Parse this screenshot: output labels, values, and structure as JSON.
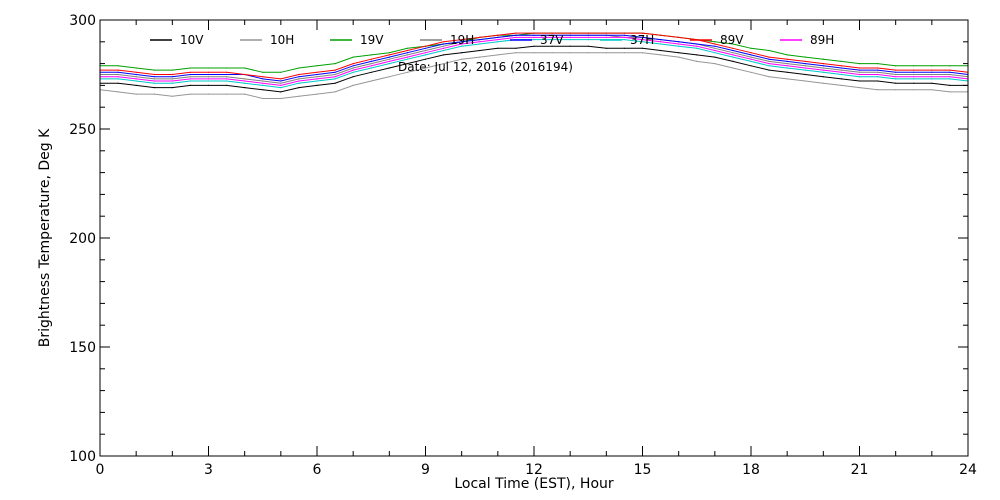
{
  "chart_data": {
    "type": "line",
    "title": "",
    "annotation": "Date: Jul 12, 2016 (2016194)",
    "xlabel": "Local Time (EST), Hour",
    "ylabel": "Brightness Temperature, Deg K",
    "xlim": [
      0,
      24
    ],
    "ylim": [
      100,
      300
    ],
    "xticks": [
      0,
      3,
      6,
      9,
      12,
      15,
      18,
      21,
      24
    ],
    "yticks": [
      100,
      150,
      200,
      250,
      300
    ],
    "x_minor_step": 1,
    "y_minor_step": 10,
    "grid": false,
    "legend_placement": "top, inside plot",
    "x": [
      0,
      0.5,
      1,
      1.5,
      2,
      2.5,
      3,
      3.5,
      4,
      4.5,
      5,
      5.5,
      6,
      6.5,
      7,
      7.5,
      8,
      8.5,
      9,
      9.5,
      10,
      10.5,
      11,
      11.5,
      12,
      12.5,
      13,
      13.5,
      14,
      14.5,
      15,
      15.5,
      16,
      16.5,
      17,
      17.5,
      18,
      18.5,
      19,
      19.5,
      20,
      20.5,
      21,
      21.5,
      22,
      22.5,
      23,
      23.5,
      24
    ],
    "series": [
      {
        "name": "10V",
        "color": "#000000",
        "values": [
          271,
          271,
          270,
          269,
          269,
          270,
          270,
          270,
          269,
          268,
          267,
          269,
          270,
          271,
          274,
          276,
          278,
          280,
          282,
          284,
          285,
          286,
          287,
          287,
          288,
          288,
          288,
          288,
          287,
          287,
          287,
          286,
          285,
          284,
          283,
          281,
          279,
          277,
          276,
          275,
          274,
          273,
          272,
          272,
          271,
          271,
          271,
          270,
          270
        ]
      },
      {
        "name": "10H",
        "color": "#969696",
        "values": [
          268,
          267,
          266,
          266,
          265,
          266,
          266,
          266,
          266,
          264,
          264,
          265,
          266,
          267,
          270,
          272,
          274,
          276,
          278,
          280,
          282,
          283,
          284,
          285,
          285,
          285,
          285,
          285,
          285,
          285,
          285,
          284,
          283,
          281,
          280,
          278,
          276,
          274,
          273,
          272,
          271,
          270,
          269,
          268,
          268,
          268,
          268,
          267,
          267
        ]
      },
      {
        "name": "19V",
        "color": "#00a000",
        "values": [
          279,
          279,
          278,
          277,
          277,
          278,
          278,
          278,
          278,
          276,
          276,
          278,
          279,
          280,
          283,
          284,
          285,
          287,
          288,
          289,
          290,
          292,
          293,
          293,
          294,
          294,
          294,
          294,
          294,
          294,
          294,
          293,
          292,
          291,
          290,
          289,
          287,
          286,
          284,
          283,
          282,
          281,
          280,
          280,
          279,
          279,
          279,
          279,
          279
        ]
      },
      {
        "name": "19H",
        "color": "#808080",
        "values": [
          275,
          275,
          274,
          273,
          273,
          274,
          274,
          274,
          273,
          272,
          271,
          273,
          274,
          275,
          278,
          280,
          282,
          284,
          286,
          288,
          290,
          291,
          292,
          293,
          293,
          293,
          293,
          293,
          293,
          292,
          292,
          291,
          290,
          289,
          287,
          285,
          283,
          281,
          280,
          279,
          278,
          277,
          276,
          276,
          275,
          275,
          275,
          275,
          274
        ]
      },
      {
        "name": "37V",
        "color": "#0000ff",
        "values": [
          276,
          276,
          275,
          274,
          274,
          275,
          275,
          275,
          275,
          273,
          272,
          274,
          275,
          276,
          279,
          281,
          283,
          285,
          287,
          289,
          290,
          291,
          292,
          293,
          293,
          293,
          293,
          293,
          293,
          293,
          292,
          291,
          290,
          289,
          288,
          286,
          284,
          282,
          281,
          280,
          279,
          278,
          277,
          277,
          276,
          276,
          276,
          276,
          275
        ]
      },
      {
        "name": "37H",
        "color": "#00c8c8",
        "values": [
          273,
          273,
          272,
          271,
          271,
          272,
          272,
          272,
          271,
          270,
          269,
          271,
          272,
          273,
          276,
          278,
          280,
          282,
          284,
          286,
          288,
          289,
          290,
          291,
          291,
          291,
          291,
          291,
          291,
          291,
          290,
          289,
          288,
          287,
          285,
          283,
          281,
          279,
          278,
          277,
          276,
          275,
          274,
          274,
          273,
          273,
          273,
          273,
          272
        ]
      },
      {
        "name": "89V",
        "color": "#ff0000",
        "values": [
          277,
          277,
          276,
          275,
          275,
          276,
          276,
          276,
          275,
          274,
          273,
          275,
          276,
          277,
          280,
          282,
          284,
          286,
          288,
          290,
          291,
          292,
          293,
          294,
          294,
          294,
          294,
          294,
          294,
          294,
          294,
          293,
          292,
          291,
          289,
          287,
          285,
          283,
          282,
          281,
          280,
          279,
          278,
          278,
          277,
          277,
          277,
          277,
          276
        ]
      },
      {
        "name": "89H",
        "color": "#ff00ff",
        "values": [
          274,
          274,
          273,
          272,
          272,
          273,
          273,
          273,
          272,
          271,
          270,
          272,
          273,
          274,
          277,
          279,
          281,
          283,
          285,
          287,
          289,
          290,
          291,
          292,
          292,
          292,
          292,
          292,
          292,
          292,
          291,
          290,
          289,
          288,
          286,
          284,
          282,
          280,
          279,
          278,
          277,
          276,
          275,
          275,
          274,
          274,
          274,
          274,
          273
        ]
      }
    ]
  }
}
